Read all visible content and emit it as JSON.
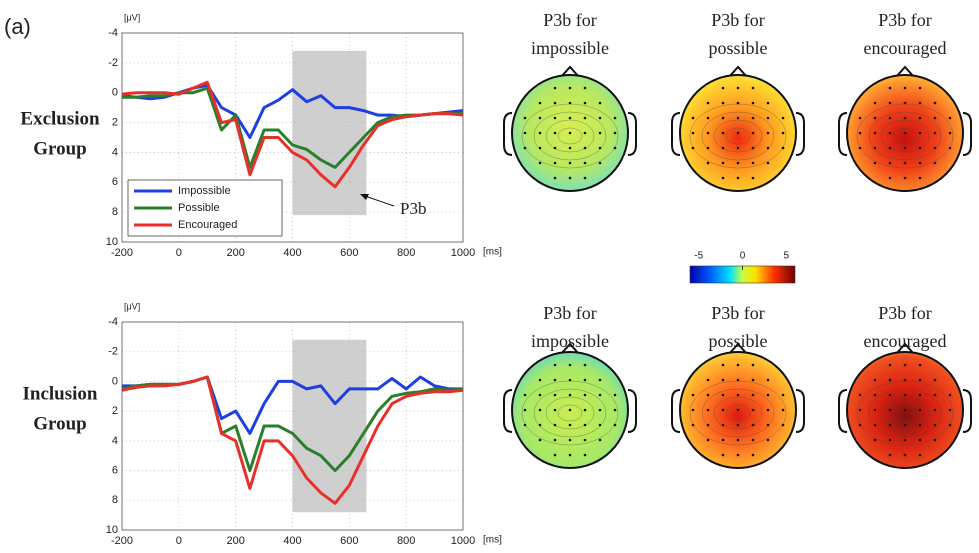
{
  "panel_label": "(a)",
  "chart_data": [
    {
      "type": "line",
      "row_label": [
        "Exclusion",
        "Group"
      ],
      "y_label": "[μV]",
      "x_label": "[ms]",
      "x": [
        -200,
        -150,
        -100,
        -50,
        0,
        50,
        100,
        150,
        200,
        250,
        300,
        350,
        400,
        450,
        500,
        550,
        600,
        650,
        700,
        750,
        800,
        850,
        900,
        950,
        1000
      ],
      "series": [
        {
          "name": "Impossible",
          "color": "#1f3fe0",
          "values": [
            0.2,
            0.3,
            0.4,
            0.3,
            0,
            -0.3,
            -0.5,
            1.0,
            1.5,
            3.0,
            1.0,
            0.5,
            -0.2,
            0.6,
            0.2,
            1.0,
            1.0,
            1.2,
            1.5,
            1.5,
            1.6,
            1.5,
            1.4,
            1.3,
            1.2
          ]
        },
        {
          "name": "Possible",
          "color": "#2a7f2a",
          "values": [
            0.3,
            0.3,
            0.2,
            0.2,
            0,
            0,
            -0.3,
            2.5,
            1.5,
            5.0,
            2.5,
            2.5,
            3.5,
            3.8,
            4.5,
            5.0,
            4.0,
            3.0,
            2.0,
            1.6,
            1.5,
            1.5,
            1.4,
            1.4,
            1.4
          ]
        },
        {
          "name": "Encouraged",
          "color": "#e8302b",
          "values": [
            0.1,
            0,
            0,
            0,
            0.1,
            -0.3,
            -0.7,
            2.0,
            1.8,
            5.5,
            3.0,
            3.0,
            4.0,
            4.5,
            5.5,
            6.3,
            5.0,
            3.5,
            2.2,
            1.8,
            1.6,
            1.5,
            1.4,
            1.4,
            1.5
          ]
        }
      ],
      "xlim": [
        -200,
        1000
      ],
      "ylim": [
        -4,
        10
      ],
      "y_inverted": true,
      "xticks": [
        -200,
        0,
        200,
        400,
        600,
        800,
        1000
      ],
      "yticks": [
        -4,
        -2,
        0,
        2,
        4,
        6,
        8,
        10
      ],
      "grid": true,
      "legend": "lower left",
      "shaded_region": {
        "x": [
          400,
          660
        ],
        "y": [
          -2.8,
          8.2
        ]
      },
      "annotation": "P3b"
    },
    {
      "type": "line",
      "row_label": [
        "Inclusion",
        "Group"
      ],
      "y_label": "[μV]",
      "x_label": "[ms]",
      "x": [
        -200,
        -150,
        -100,
        -50,
        0,
        50,
        100,
        150,
        200,
        250,
        300,
        350,
        400,
        450,
        500,
        550,
        600,
        650,
        700,
        750,
        800,
        850,
        900,
        950,
        1000
      ],
      "series": [
        {
          "color": "#1f3fe0",
          "values": [
            0.3,
            0.3,
            0.2,
            0.2,
            0.2,
            0,
            -0.3,
            2.5,
            2.0,
            3.5,
            1.5,
            0,
            0,
            0.5,
            0.3,
            1.5,
            0.5,
            0.5,
            0.5,
            -0.2,
            0.5,
            -0.3,
            0.3,
            0.5,
            0.5
          ]
        },
        {
          "color": "#2a7f2a",
          "values": [
            0.5,
            0.3,
            0.2,
            0.2,
            0.2,
            0,
            -0.3,
            3.5,
            3.0,
            6.0,
            3.0,
            3.0,
            3.5,
            4.5,
            5.0,
            6.0,
            5.0,
            3.5,
            2.0,
            1.0,
            0.8,
            0.7,
            0.5,
            0.6,
            0.5
          ]
        },
        {
          "color": "#e8302b",
          "values": [
            0.6,
            0.4,
            0.3,
            0.3,
            0.2,
            0,
            -0.3,
            3.5,
            4.0,
            7.2,
            4.0,
            4.0,
            5.0,
            6.5,
            7.5,
            8.2,
            7.0,
            5.0,
            3.0,
            1.5,
            1.0,
            0.8,
            0.7,
            0.7,
            0.6
          ]
        }
      ],
      "xlim": [
        -200,
        1000
      ],
      "ylim": [
        -4,
        10
      ],
      "y_inverted": true,
      "xticks": [
        -200,
        0,
        200,
        400,
        600,
        800,
        1000
      ],
      "yticks": [
        -4,
        -2,
        0,
        2,
        4,
        6,
        8,
        10
      ],
      "grid": true,
      "shaded_region": {
        "x": [
          400,
          660
        ],
        "y": [
          -2.8,
          8.8
        ]
      }
    }
  ],
  "topomaps": {
    "rows": [
      [
        [
          "P3b for",
          "impossible"
        ],
        [
          "P3b for",
          "possible"
        ],
        [
          "P3b for",
          "encouraged"
        ]
      ],
      [
        [
          "P3b for",
          "impossible"
        ],
        [
          "P3b for",
          "possible"
        ],
        [
          "P3b for",
          "encouraged"
        ]
      ]
    ],
    "colorbar": {
      "lim": [
        -6,
        6
      ],
      "ticks": [
        -5,
        0,
        5
      ]
    }
  }
}
